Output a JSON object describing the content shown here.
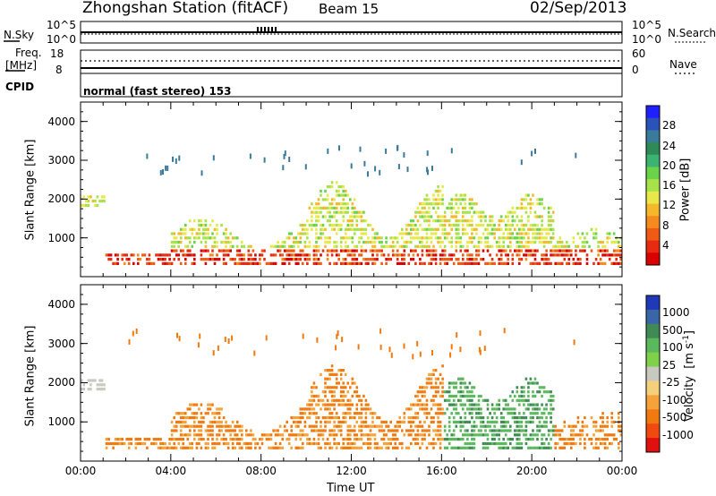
{
  "header": {
    "station": "Zhongshan Station (fitACF)",
    "beam": "Beam 15",
    "date": "02/Sep/2013"
  },
  "strip_panels": {
    "nsky": {
      "label": "N.Sky",
      "top_tick": "10^5",
      "bottom_tick": "10^0"
    },
    "nsearch": {
      "label": "N.Search",
      "top_tick": "10^5",
      "bottom_tick": "10^0"
    },
    "freq": {
      "label_line1": "Freq.",
      "label_line2": "[MHz]",
      "top_tick": "18",
      "bottom_tick": "8"
    },
    "nave": {
      "label": "Nave",
      "top_tick": "60",
      "bottom_tick": "0"
    },
    "cpid": {
      "label": "CPID",
      "mode": "normal (fast stereo) 153"
    }
  },
  "chart_data": [
    {
      "type": "heatmap",
      "title": "",
      "xlabel": "",
      "ylabel": "Slant Range [km]",
      "yticks": [
        "1000",
        "2000",
        "3000",
        "4000"
      ],
      "colorbar": {
        "label": "Power [dB]",
        "ticks": [
          "4",
          "8",
          "12",
          "16",
          "20",
          "24",
          "28"
        ],
        "colors": [
          "#1f1fff",
          "#2a52b8",
          "#3a7a9a",
          "#2e8b57",
          "#3cb371",
          "#6bd34a",
          "#a8e24a",
          "#e8e84a",
          "#f5b82a",
          "#f58a1e",
          "#ef5a14",
          "#e82a10",
          "#d80000"
        ]
      }
    },
    {
      "type": "heatmap",
      "title": "",
      "xlabel": "Time UT",
      "ylabel": "Slant Range [km]",
      "yticks": [
        "1000",
        "2000",
        "3000",
        "4000"
      ],
      "xticks": [
        "00:00",
        "04:00",
        "08:00",
        "12:00",
        "16:00",
        "20:00",
        "00:00"
      ],
      "colorbar": {
        "label_text": "Velocity",
        "label_unit": "[m s",
        "label_sup": "-1",
        "label_close": "]",
        "ticks": [
          "1000",
          "500",
          "100",
          "25",
          "-25",
          "-100",
          "-500",
          "-1000"
        ],
        "colors": [
          "#2039b8",
          "#3a66a8",
          "#3f8a55",
          "#5cb85c",
          "#7fd04a",
          "#c8c8c0",
          "#f5d07a",
          "#f5a23a",
          "#f07a10",
          "#f04a10",
          "#e01010"
        ]
      }
    }
  ]
}
